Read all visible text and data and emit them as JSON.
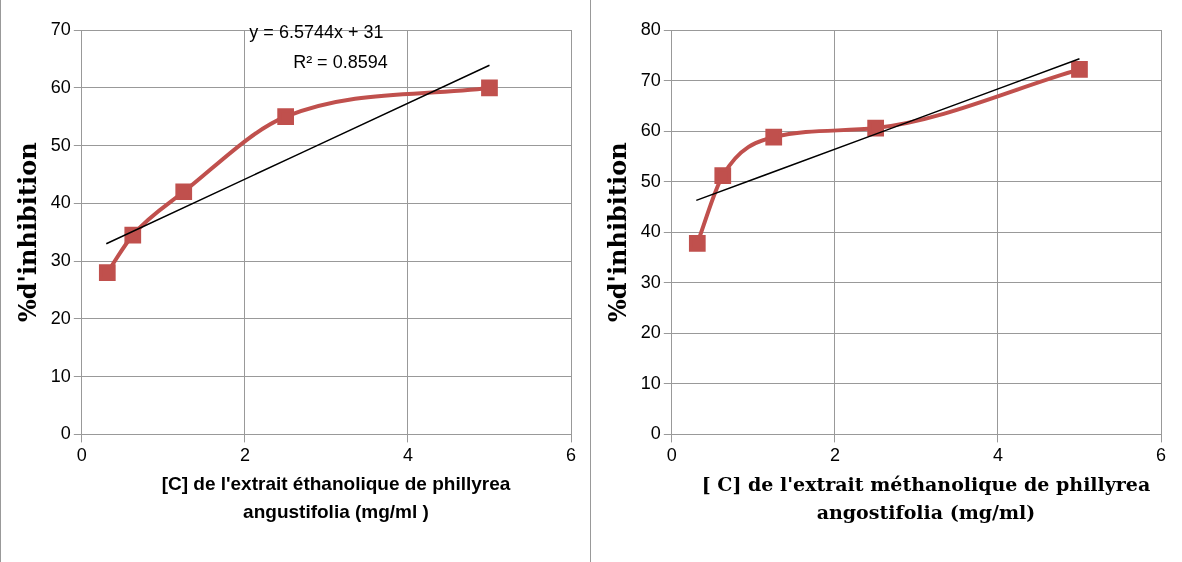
{
  "chart_data": [
    {
      "type": "line",
      "xlabel": "[C] de l'extrait éthanolique de phillyrea angustifolia (mg/ml )",
      "ylabel": "%d'inhibition",
      "xlim": [
        0,
        6
      ],
      "xticks": [
        0,
        2,
        4,
        6
      ],
      "ylim": [
        0,
        70
      ],
      "yticks": [
        0,
        10,
        20,
        30,
        40,
        50,
        60,
        70
      ],
      "grid": true,
      "legend": false,
      "marker": "square",
      "line_style": "solid",
      "annotations": [
        "y = 6.5744x + 31",
        "R² = 0.8594"
      ],
      "series": [
        {
          "color": "#c0504d",
          "x": [
            0.3125,
            0.625,
            1.25,
            2.5,
            5
          ],
          "values": [
            28,
            34.5,
            42,
            55,
            60
          ]
        },
        {
          "type": "line",
          "color": "#000000",
          "marker": "none",
          "x": [
            0.3,
            5
          ],
          "values": [
            33,
            63.9
          ]
        }
      ]
    },
    {
      "type": "line",
      "xlabel": "[ C] de l'extrait méthanolique de phillyrea angostifolia (mg/ml)",
      "ylabel": "%d'inhibition",
      "xlim": [
        0,
        6
      ],
      "xticks": [
        0,
        2,
        4,
        6
      ],
      "ylim": [
        0,
        80
      ],
      "yticks": [
        0,
        10,
        20,
        30,
        40,
        50,
        60,
        70,
        80
      ],
      "grid": true,
      "legend": false,
      "marker": "square",
      "line_style": "solid",
      "series": [
        {
          "color": "#c0504d",
          "x": [
            0.3125,
            0.625,
            1.25,
            2.5,
            5
          ],
          "values": [
            37.8,
            51.2,
            58.8,
            60.6,
            72.2
          ]
        },
        {
          "type": "line",
          "color": "#000000",
          "marker": "none",
          "x": [
            0.3,
            5
          ],
          "values": [
            46.3,
            74.3
          ]
        }
      ]
    }
  ]
}
